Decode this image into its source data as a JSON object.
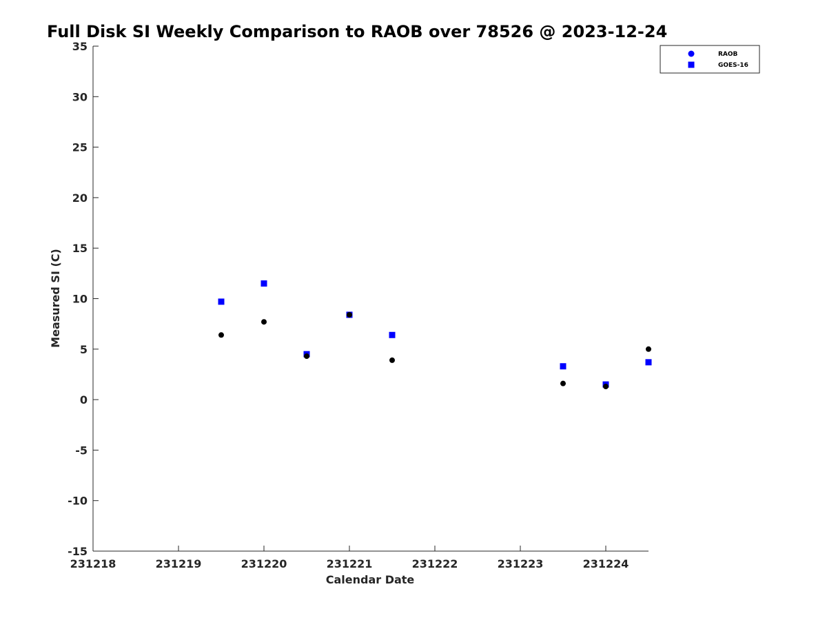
{
  "chart_data": {
    "type": "scatter",
    "title": "Full Disk SI Weekly Comparison to RAOB over 78526 @ 2023-12-24",
    "xlabel": "Calendar Date",
    "ylabel": "Measured SI (C)",
    "xlim": [
      231218,
      231224.5
    ],
    "ylim": [
      -15,
      35
    ],
    "x_ticks": [
      231218,
      231219,
      231220,
      231221,
      231222,
      231223,
      231224
    ],
    "x_tick_labels": [
      "231218",
      "231219",
      "231220",
      "231221",
      "231222",
      "231223",
      "231224"
    ],
    "y_ticks": [
      -15,
      -10,
      -5,
      0,
      5,
      10,
      15,
      20,
      25,
      30,
      35
    ],
    "y_tick_labels": [
      "-15",
      "-10",
      "-5",
      "0",
      "5",
      "10",
      "15",
      "20",
      "25",
      "30",
      "35"
    ],
    "grid": false,
    "legend_position": "top-right",
    "series": [
      {
        "name": "RAOB",
        "marker": "circle",
        "legend_color": "#0000ff",
        "color": "#000000",
        "points": [
          {
            "x": 231219.5,
            "y": 6.4
          },
          {
            "x": 231220.0,
            "y": 7.7
          },
          {
            "x": 231220.5,
            "y": 4.3
          },
          {
            "x": 231221.0,
            "y": 8.4
          },
          {
            "x": 231221.5,
            "y": 3.9
          },
          {
            "x": 231223.5,
            "y": 1.6
          },
          {
            "x": 231224.0,
            "y": 1.3
          },
          {
            "x": 231224.5,
            "y": 5.0
          }
        ]
      },
      {
        "name": "GOES-16",
        "marker": "square",
        "legend_color": "#0000ff",
        "color": "#0000ff",
        "points": [
          {
            "x": 231219.5,
            "y": 9.7
          },
          {
            "x": 231220.0,
            "y": 11.5
          },
          {
            "x": 231220.5,
            "y": 4.5
          },
          {
            "x": 231221.0,
            "y": 8.4
          },
          {
            "x": 231221.5,
            "y": 6.4
          },
          {
            "x": 231223.5,
            "y": 3.3
          },
          {
            "x": 231224.0,
            "y": 1.5
          },
          {
            "x": 231224.5,
            "y": 3.7
          }
        ]
      }
    ]
  }
}
